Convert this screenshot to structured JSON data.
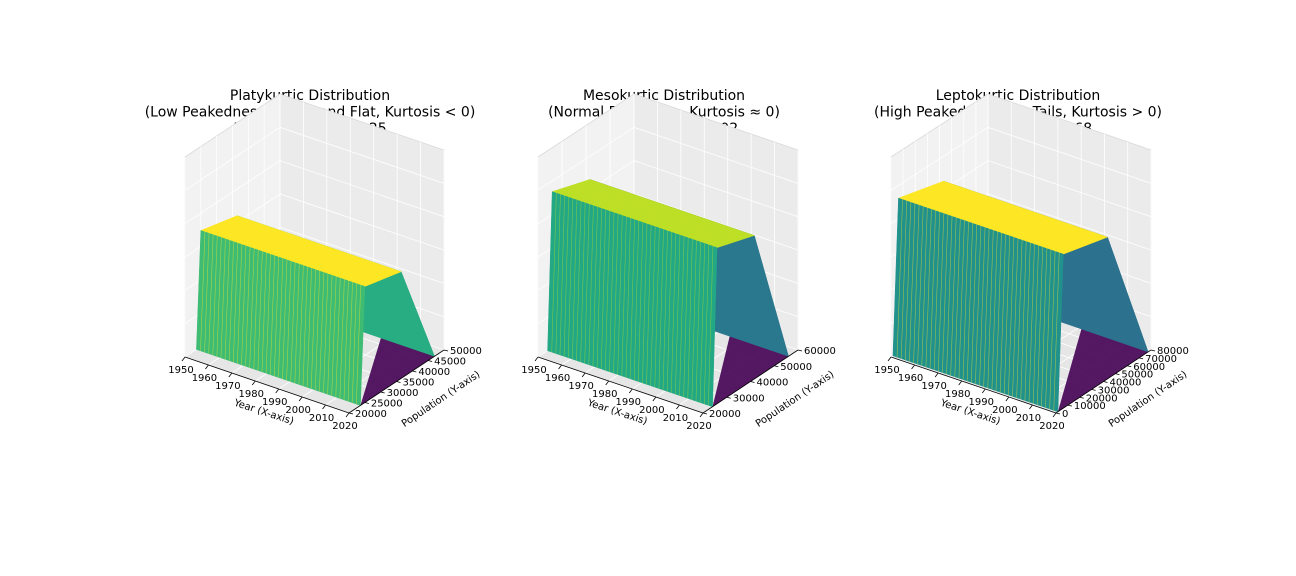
{
  "figure": {
    "background": "#ffffff",
    "colormap": "viridis"
  },
  "chart_data": [
    {
      "type": "surface3d",
      "title_lines": [
        "Platykurtic Distribution",
        "(Low Peakedness, Broad and Flat, Kurtosis < 0)",
        "Excess Kurtosis: -1.25"
      ],
      "xlabel": "Year (X-axis)",
      "ylabel": "Population (Y-axis)",
      "xticks": [
        "1950",
        "1960",
        "1970",
        "1980",
        "1990",
        "2000",
        "2010",
        "2020"
      ],
      "yticks": [
        "20000",
        "25000",
        "30000",
        "35000",
        "40000",
        "45000",
        "50000"
      ],
      "xlim": [
        1950,
        2020
      ],
      "ylim": [
        20000,
        50000
      ],
      "surface_color": "#3fbc73",
      "ridge_color": "#fde725",
      "shade_color": "#27ad81",
      "tail_color": "#440154"
    },
    {
      "type": "surface3d",
      "title_lines": [
        "Mesokurtic Distribution",
        "(Normal Bell Curve, Kurtosis ≈ 0)",
        "Excess Kurtosis: 0.02"
      ],
      "xlabel": "Year (X-axis)",
      "ylabel": "Population (Y-axis)",
      "xticks": [
        "1950",
        "1960",
        "1970",
        "1980",
        "1990",
        "2000",
        "2010",
        "2020"
      ],
      "yticks": [
        "20000",
        "30000",
        "40000",
        "50000",
        "60000"
      ],
      "xlim": [
        1950,
        2020
      ],
      "ylim": [
        20000,
        60000
      ],
      "surface_color": "#22a884",
      "ridge_color": "#bddf26",
      "shade_color": "#2a788e",
      "tail_color": "#440154"
    },
    {
      "type": "surface3d",
      "title_lines": [
        "Leptokurtic Distribution",
        "(High Peakedness, Fat Tails, Kurtosis > 0)",
        "Excess Kurtosis: 0.68"
      ],
      "xlabel": "Year (X-axis)",
      "ylabel": "Population (Y-axis)",
      "xticks": [
        "1950",
        "1960",
        "1970",
        "1980",
        "1990",
        "2000",
        "2010",
        "2020"
      ],
      "yticks": [
        "0",
        "10000",
        "20000",
        "30000",
        "40000",
        "50000",
        "60000",
        "70000",
        "80000"
      ],
      "xlim": [
        1950,
        2020
      ],
      "ylim": [
        0,
        80000
      ],
      "surface_color": "#21918c",
      "ridge_color": "#fde725",
      "shade_color": "#2c728e",
      "tail_color": "#440154"
    }
  ]
}
